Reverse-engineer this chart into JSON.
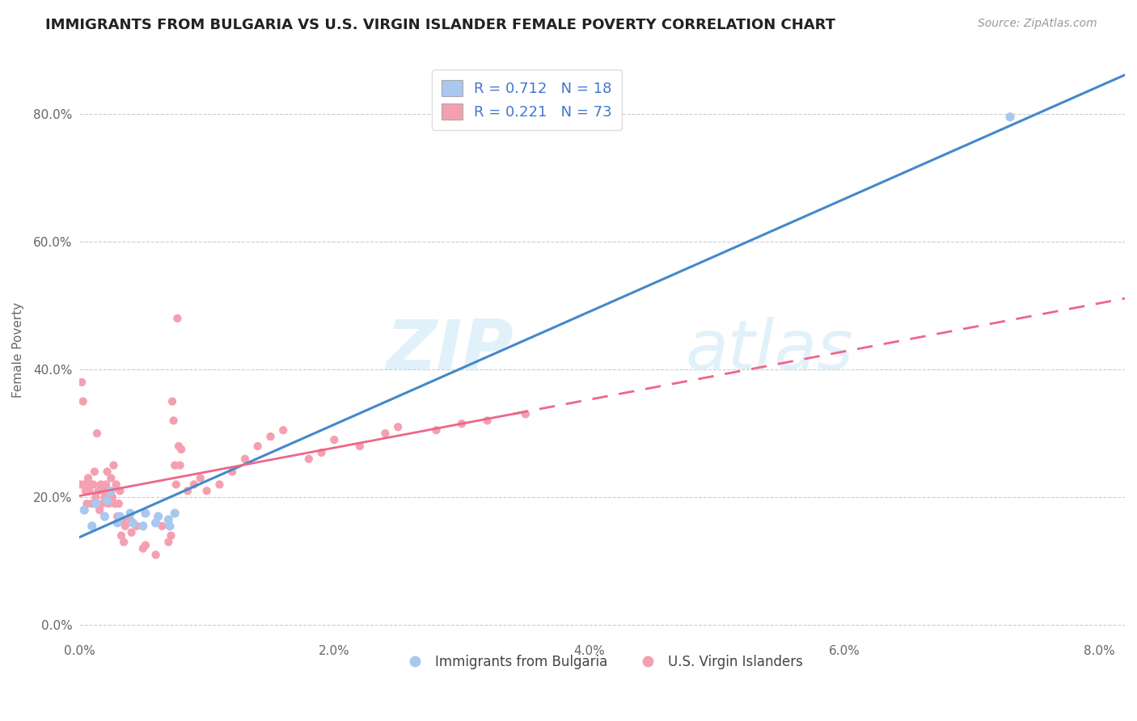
{
  "title": "IMMIGRANTS FROM BULGARIA VS U.S. VIRGIN ISLANDER FEMALE POVERTY CORRELATION CHART",
  "source": "Source: ZipAtlas.com",
  "ylabel": "Female Poverty",
  "watermark_zip": "ZIP",
  "watermark_atlas": "atlas",
  "legend1_label": "R = 0.712   N = 18",
  "legend2_label": "R = 0.221   N = 73",
  "blue_color": "#a8c8f0",
  "pink_color": "#f4a0b0",
  "blue_line_color": "#4488cc",
  "pink_line_color": "#ee6688",
  "grid_color": "#cccccc",
  "text_blue": "#4477cc",
  "background": "#ffffff",
  "blue_scatter_x": [
    0.0004,
    0.001,
    0.0013,
    0.002,
    0.0022,
    0.0025,
    0.003,
    0.0032,
    0.004,
    0.0042,
    0.005,
    0.0052,
    0.006,
    0.0062,
    0.007,
    0.0071,
    0.0075,
    0.073
  ],
  "blue_scatter_y": [
    0.18,
    0.155,
    0.19,
    0.17,
    0.195,
    0.21,
    0.16,
    0.17,
    0.175,
    0.16,
    0.155,
    0.175,
    0.16,
    0.17,
    0.165,
    0.155,
    0.175,
    0.795
  ],
  "pink_scatter_x": [
    0.0001,
    0.0002,
    0.0003,
    0.0004,
    0.0005,
    0.0006,
    0.0007,
    0.0008,
    0.0009,
    0.001,
    0.0011,
    0.0012,
    0.0013,
    0.0014,
    0.0015,
    0.0016,
    0.0017,
    0.0018,
    0.0019,
    0.002,
    0.0021,
    0.0022,
    0.0023,
    0.0024,
    0.0025,
    0.0026,
    0.0027,
    0.0028,
    0.0029,
    0.003,
    0.0031,
    0.0032,
    0.0033,
    0.0034,
    0.0035,
    0.0036,
    0.004,
    0.0041,
    0.0045,
    0.005,
    0.0052,
    0.006,
    0.0065,
    0.007,
    0.0072,
    0.0073,
    0.0074,
    0.0075,
    0.0076,
    0.0077,
    0.0078,
    0.0079,
    0.008,
    0.0085,
    0.009,
    0.0095,
    0.01,
    0.011,
    0.012,
    0.013,
    0.014,
    0.015,
    0.016,
    0.018,
    0.019,
    0.02,
    0.022,
    0.024,
    0.025,
    0.028,
    0.03,
    0.032,
    0.035
  ],
  "pink_scatter_y": [
    0.22,
    0.38,
    0.35,
    0.22,
    0.21,
    0.19,
    0.23,
    0.21,
    0.22,
    0.19,
    0.22,
    0.24,
    0.2,
    0.3,
    0.21,
    0.18,
    0.22,
    0.19,
    0.21,
    0.2,
    0.22,
    0.24,
    0.19,
    0.21,
    0.23,
    0.2,
    0.25,
    0.19,
    0.22,
    0.17,
    0.19,
    0.21,
    0.14,
    0.165,
    0.13,
    0.155,
    0.165,
    0.145,
    0.155,
    0.12,
    0.125,
    0.11,
    0.155,
    0.13,
    0.14,
    0.35,
    0.32,
    0.25,
    0.22,
    0.48,
    0.28,
    0.25,
    0.275,
    0.21,
    0.22,
    0.23,
    0.21,
    0.22,
    0.24,
    0.26,
    0.28,
    0.295,
    0.305,
    0.26,
    0.27,
    0.29,
    0.28,
    0.3,
    0.31,
    0.305,
    0.315,
    0.32,
    0.33
  ],
  "xlim": [
    0,
    0.082
  ],
  "ylim": [
    -0.02,
    0.88
  ],
  "yticks": [
    0.0,
    0.2,
    0.4,
    0.6,
    0.8
  ],
  "ytick_labels": [
    "0.0%",
    "20.0%",
    "40.0%",
    "60.0%",
    "80.0%"
  ],
  "xticks": [
    0.0,
    0.02,
    0.04,
    0.06,
    0.08
  ],
  "xtick_labels": [
    "0.0%",
    "2.0%",
    "4.0%",
    "6.0%",
    "8.0%"
  ],
  "bottom_legend_labels": [
    "Immigrants from Bulgaria",
    "U.S. Virgin Islanders"
  ]
}
